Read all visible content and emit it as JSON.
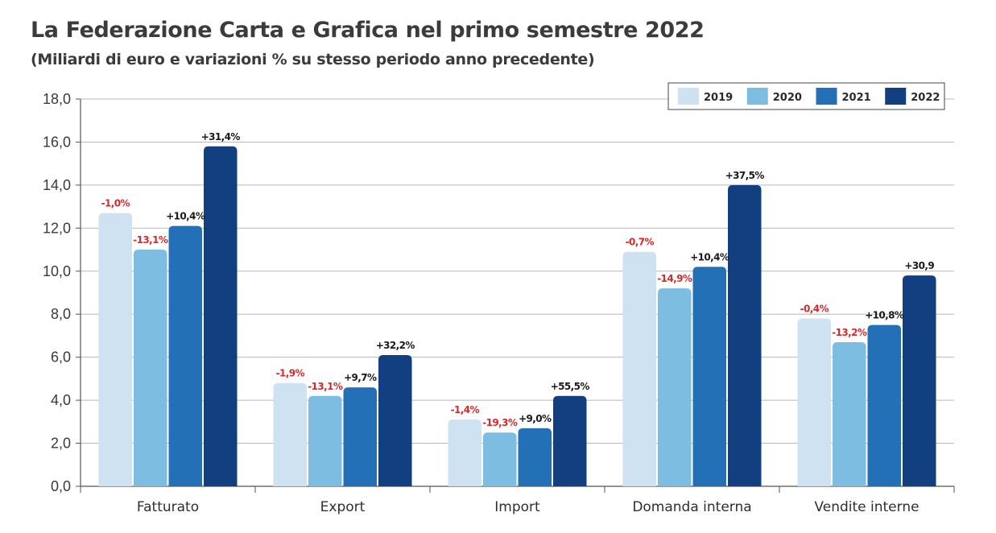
{
  "header": {
    "title": "La Federazione Carta e Grafica nel primo semestre 2022",
    "subtitle": "(Miliardi di euro e variazioni % su stesso periodo anno precedente)"
  },
  "chart_data": {
    "type": "bar",
    "categories": [
      "Fatturato",
      "Export",
      "Import",
      "Domanda interna",
      "Vendite interne"
    ],
    "series": [
      {
        "name": "2019",
        "color": "#cfe2f1",
        "values": [
          12.7,
          4.8,
          3.1,
          10.9,
          7.8
        ],
        "labels": [
          "-1,0%",
          "-1,9%",
          "-1,4%",
          "-0,7%",
          "-0,4%"
        ],
        "label_colors": [
          "#d42a2a",
          "#d42a2a",
          "#d42a2a",
          "#d42a2a",
          "#d42a2a"
        ]
      },
      {
        "name": "2020",
        "color": "#7dbde2",
        "values": [
          11.0,
          4.2,
          2.5,
          9.2,
          6.7
        ],
        "labels": [
          "-13,1%",
          "-13,1%",
          "-19,3%",
          "-14,9%",
          "-13,2%"
        ],
        "label_colors": [
          "#d42a2a",
          "#d42a2a",
          "#d42a2a",
          "#d42a2a",
          "#d42a2a"
        ]
      },
      {
        "name": "2021",
        "color": "#2470b6",
        "values": [
          12.1,
          4.6,
          2.7,
          10.2,
          7.5
        ],
        "labels": [
          "+10,4%",
          "+9,7%",
          "+9,0%",
          "+10,4%",
          "+10,8%"
        ],
        "label_colors": [
          "#1a1a1a",
          "#1a1a1a",
          "#1a1a1a",
          "#1a1a1a",
          "#1a1a1a"
        ]
      },
      {
        "name": "2022",
        "color": "#123f80",
        "values": [
          15.8,
          6.1,
          4.2,
          14.0,
          9.8
        ],
        "labels": [
          "+31,4%",
          "+32,2%",
          "+55,5%",
          "+37,5%",
          "+30,9"
        ],
        "label_colors": [
          "#1a1a1a",
          "#1a1a1a",
          "#1a1a1a",
          "#1a1a1a",
          "#1a1a1a"
        ]
      }
    ],
    "y_ticks": [
      "0,0",
      "2,0",
      "4,0",
      "6,0",
      "8,0",
      "10,0",
      "12,0",
      "14,0",
      "16,0",
      "18,0"
    ],
    "ylim": [
      0,
      18
    ],
    "y_step": 2,
    "grid": true,
    "legend_position": "top-right"
  }
}
